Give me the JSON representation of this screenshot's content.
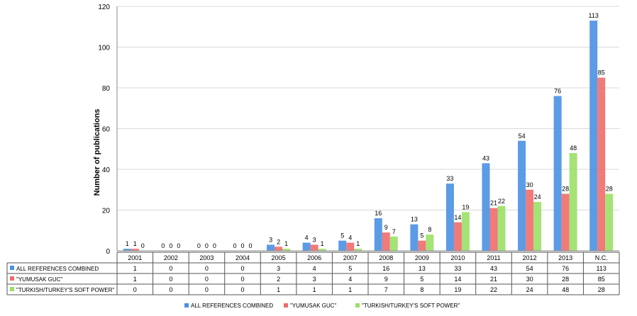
{
  "chart_data": {
    "type": "bar",
    "ylabel": "Number of publications",
    "ylim": [
      0,
      120
    ],
    "yticks": [
      0,
      20,
      40,
      60,
      80,
      100,
      120
    ],
    "grid": true,
    "categories": [
      "2001",
      "2002",
      "2003",
      "2004",
      "2005",
      "2006",
      "2007",
      "2008",
      "2009",
      "2010",
      "2011",
      "2012",
      "2013",
      "N.C."
    ],
    "series": [
      {
        "name": "ALL REFERENCES COMBINED",
        "color": "#4a90e2",
        "values": [
          1,
          0,
          0,
          0,
          3,
          4,
          5,
          16,
          13,
          33,
          43,
          54,
          76,
          113
        ]
      },
      {
        "name": "\"YUMUSAK GUC\"",
        "color": "#f06b6b",
        "values": [
          1,
          0,
          0,
          0,
          2,
          3,
          4,
          9,
          5,
          14,
          21,
          30,
          28,
          85
        ]
      },
      {
        "name": "\"TURKISH/TURKEY'S SOFT POWER\"",
        "color": "#9ae066",
        "values": [
          0,
          0,
          0,
          0,
          1,
          1,
          1,
          7,
          8,
          19,
          22,
          24,
          48,
          28
        ]
      }
    ],
    "data_table": true,
    "legend_position": "bottom"
  }
}
